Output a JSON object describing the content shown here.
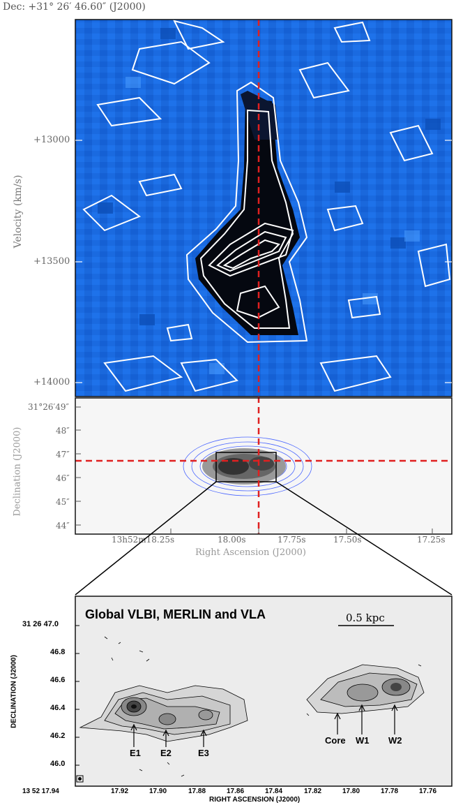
{
  "header": {
    "dec_label": "Dec: +31° 26′ 46.60″ (J2000)"
  },
  "top_panel": {
    "ylabel": "Velocity (km/s)",
    "y_ticks": [
      "+13000",
      "+13500",
      "+14000"
    ]
  },
  "mid_panel": {
    "ylabel": "Declination (J2000)",
    "xlabel": "Right Ascension (J2000)",
    "y_ticks": [
      "31°26′49″",
      "48″",
      "47″",
      "46″",
      "45″",
      "44″"
    ],
    "x_ticks": [
      "13h52m18.25s",
      "18.00s",
      "17.75s",
      "17.50s",
      "17.25s"
    ]
  },
  "bottom_panel": {
    "title": "Global VLBI, MERLIN and VLA",
    "scale_label": "0.5 kpc",
    "ylabel": "DECLINATION (J2000)",
    "xlabel": "RIGHT ASCENSION (J2000)",
    "y_ticks": [
      "31 26 47.0",
      "46.8",
      "46.6",
      "46.4",
      "46.2",
      "46.0"
    ],
    "x_ticks": [
      "13 52 17.94",
      "17.92",
      "17.90",
      "17.88",
      "17.86",
      "17.84",
      "17.82",
      "17.80",
      "17.78",
      "17.76"
    ],
    "components": [
      "E1",
      "E2",
      "E3",
      "Core",
      "W1",
      "W2"
    ]
  },
  "colors": {
    "background_blue": "#1a6ae0",
    "crosshair": "#e02020",
    "contour_blue": "#4a66ff"
  }
}
